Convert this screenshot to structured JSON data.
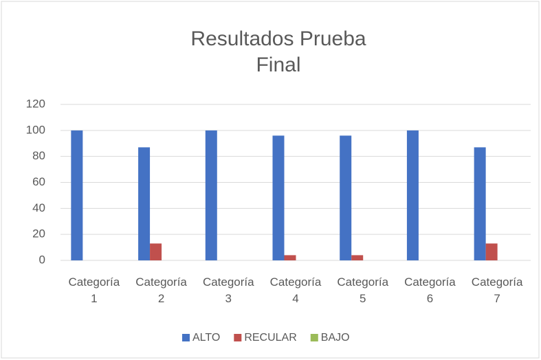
{
  "chart_data": {
    "type": "bar",
    "title": "Resultados Prueba Final",
    "categories": [
      "Categoría 1",
      "Categoría 2",
      "Categoría 3",
      "Categoría 4",
      "Categoría 5",
      "Categoría 6",
      "Categoría 7"
    ],
    "series": [
      {
        "name": "ALTO",
        "color": "#4472c4",
        "values": [
          100,
          87,
          100,
          96,
          96,
          100,
          87
        ]
      },
      {
        "name": "RECULAR",
        "color": "#c0504d",
        "values": [
          0,
          13,
          0,
          4,
          4,
          0,
          13
        ]
      },
      {
        "name": "BAJO",
        "color": "#9bbb59",
        "values": [
          0,
          0,
          0,
          0,
          0,
          0,
          0
        ]
      }
    ],
    "ylim": [
      0,
      120
    ],
    "yticks": [
      0,
      20,
      40,
      60,
      80,
      100,
      120
    ],
    "grid": true,
    "legend": "bottom"
  }
}
